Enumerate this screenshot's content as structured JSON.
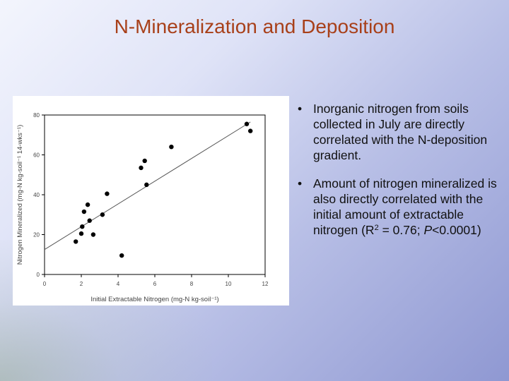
{
  "slide": {
    "title": "N-Mineralization and Deposition",
    "bullet_symbol": "•",
    "bullets": [
      {
        "text": "Inorganic nitrogen from soils collected in July are directly correlated with the N-deposition gradient."
      },
      {
        "text_before": "Amount of nitrogen mineralized is also directly correlated with the initial amount of extractable nitrogen (R",
        "superscript": "2",
        "text_middle": " = 0.76; ",
        "italic": "P",
        "text_after": "<0.0001)"
      }
    ]
  },
  "colors": {
    "title": "#a8401a",
    "points": "#000000",
    "trendline": "#555555"
  },
  "chart_data": {
    "type": "scatter",
    "title": "",
    "xlabel": "Initial Extractable Nitrogen (mg-N kg-soil⁻¹)",
    "ylabel": "Nitrogen Mineralized (mg-N kg-soil⁻¹ 14-wks⁻¹)",
    "xlim": [
      0,
      12
    ],
    "ylim": [
      0,
      80
    ],
    "xticks": [
      0,
      2,
      4,
      6,
      8,
      10,
      12
    ],
    "yticks": [
      0,
      20,
      40,
      60,
      80
    ],
    "grid": false,
    "series": [
      {
        "points": [
          [
            1.7,
            16.5
          ],
          [
            2.0,
            20.5
          ],
          [
            2.05,
            24.0
          ],
          [
            2.15,
            31.5
          ],
          [
            2.35,
            35.0
          ],
          [
            2.45,
            27.0
          ],
          [
            2.65,
            20.0
          ],
          [
            3.15,
            30.0
          ],
          [
            3.4,
            40.5
          ],
          [
            4.2,
            9.5
          ],
          [
            5.25,
            53.5
          ],
          [
            5.45,
            57.0
          ],
          [
            5.55,
            45.0
          ],
          [
            6.9,
            64.0
          ],
          [
            11.0,
            75.5
          ],
          [
            11.2,
            72.0
          ]
        ]
      }
    ],
    "trendline": {
      "x": [
        0,
        11.2
      ],
      "y": [
        12.5,
        76.5
      ]
    }
  }
}
